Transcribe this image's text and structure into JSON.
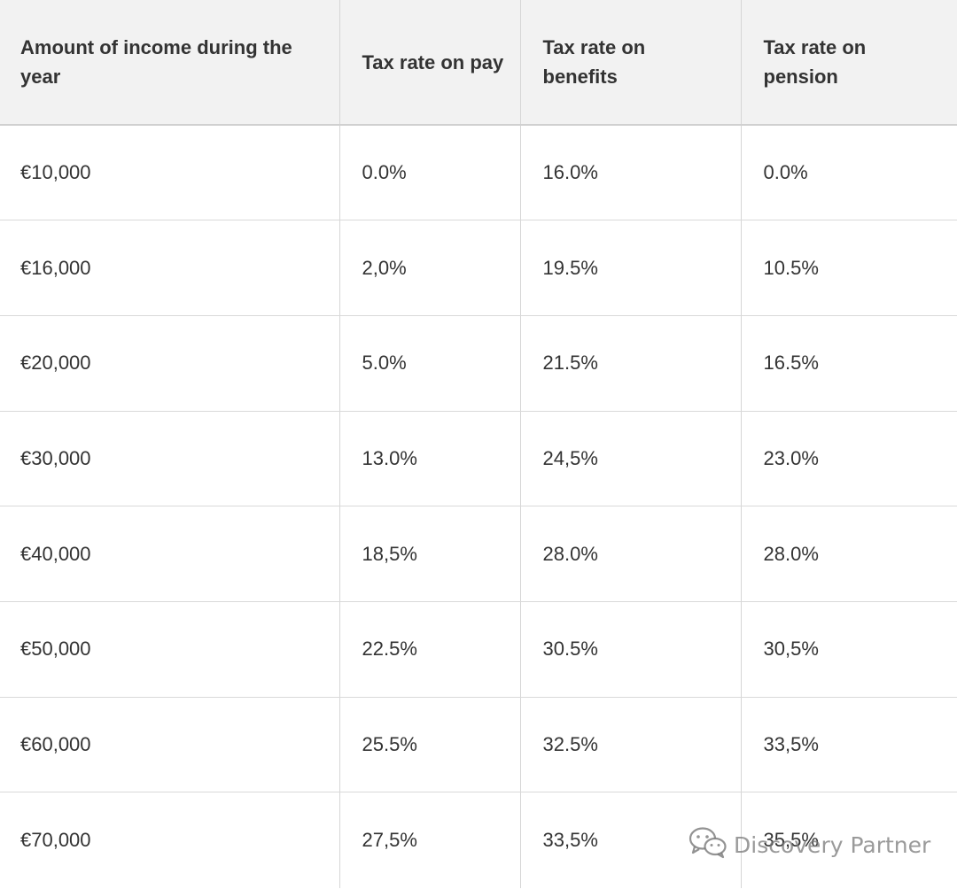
{
  "table": {
    "headers": [
      "Amount of income during the year",
      "Tax rate on pay",
      "Tax rate on benefits",
      "Tax rate on pension"
    ],
    "rows": [
      [
        "€10,000",
        "0.0%",
        "16.0%",
        "0.0%"
      ],
      [
        "€16,000",
        "2,0%",
        "19.5%",
        "10.5%"
      ],
      [
        "€20,000",
        "5.0%",
        "21.5%",
        "16.5%"
      ],
      [
        "€30,000",
        "13.0%",
        "24,5%",
        "23.0%"
      ],
      [
        "€40,000",
        "18,5%",
        "28.0%",
        "28.0%"
      ],
      [
        "€50,000",
        "22.5%",
        "30.5%",
        "30,5%"
      ],
      [
        "€60,000",
        "25.5%",
        "32.5%",
        "33,5%"
      ],
      [
        "€70,000",
        "27,5%",
        "33,5%",
        "35,5%"
      ]
    ]
  },
  "watermark": {
    "text": "Discovery Partner",
    "icon": "wechat-icon"
  }
}
